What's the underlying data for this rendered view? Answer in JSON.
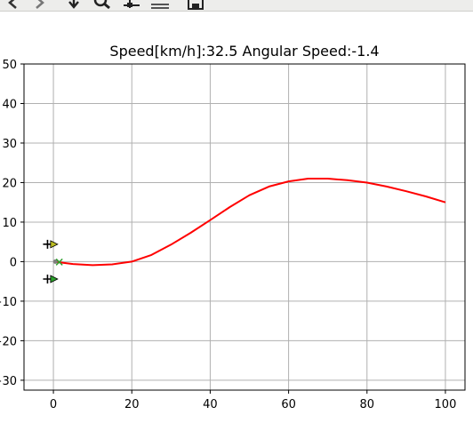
{
  "toolbar": {
    "buttons": [
      {
        "name": "back-button",
        "icon": "arrow-left-icon"
      },
      {
        "name": "forward-button",
        "icon": "arrow-right-icon"
      },
      {
        "name": "pan-button",
        "icon": "move-icon"
      },
      {
        "name": "zoom-button",
        "icon": "magnifier-icon"
      },
      {
        "name": "subplots-button",
        "icon": "sliders-icon"
      },
      {
        "name": "edit-axes-button",
        "icon": "chart-edit-icon"
      },
      {
        "name": "save-button",
        "icon": "floppy-disk-icon"
      }
    ]
  },
  "chart_data": {
    "type": "line",
    "title": "Speed[km/h]:32.5  Angular Speed:-1.4",
    "xlabel": "",
    "ylabel": "",
    "xlim": [
      -7.5,
      105
    ],
    "ylim": [
      -32.5,
      50
    ],
    "xticks": [
      0,
      20,
      40,
      60,
      80,
      100
    ],
    "yticks": [
      -30,
      -20,
      -10,
      0,
      10,
      20,
      30,
      40,
      50
    ],
    "xtick_labels": [
      "0",
      "20",
      "40",
      "60",
      "80",
      "100"
    ],
    "ytick_labels": [
      "−30",
      "−20",
      "−10",
      "0",
      "10",
      "20",
      "30",
      "40",
      "50"
    ],
    "grid": true,
    "series": [
      {
        "color": "#ff0000",
        "x": [
          0,
          5,
          10,
          15,
          20,
          25,
          30,
          35,
          40,
          45,
          50,
          55,
          60,
          65,
          70,
          75,
          80,
          85,
          90,
          95,
          100
        ],
        "y": [
          0,
          -0.6,
          -0.9,
          -0.7,
          0,
          1.7,
          4.3,
          7.3,
          10.5,
          13.8,
          16.8,
          19.0,
          20.3,
          21.0,
          21.0,
          20.6,
          20.0,
          19.0,
          17.8,
          16.5,
          15.0
        ]
      }
    ],
    "markers": {
      "vehicle_center": {
        "x": 0.5,
        "y": 0,
        "color": "#7f7f7f"
      },
      "goal_cross": {
        "x": 1.5,
        "y": -0.1,
        "color": "#2ca02c"
      },
      "wheels": [
        {
          "x": -0.5,
          "y": 4.4,
          "color": "#bcbd22"
        },
        {
          "x": -0.5,
          "y": -4.4,
          "color": "#2ca02c"
        }
      ],
      "axle_ticks": [
        {
          "x": -1.5,
          "y": 4.4
        },
        {
          "x": -1.5,
          "y": -4.4
        }
      ]
    }
  }
}
